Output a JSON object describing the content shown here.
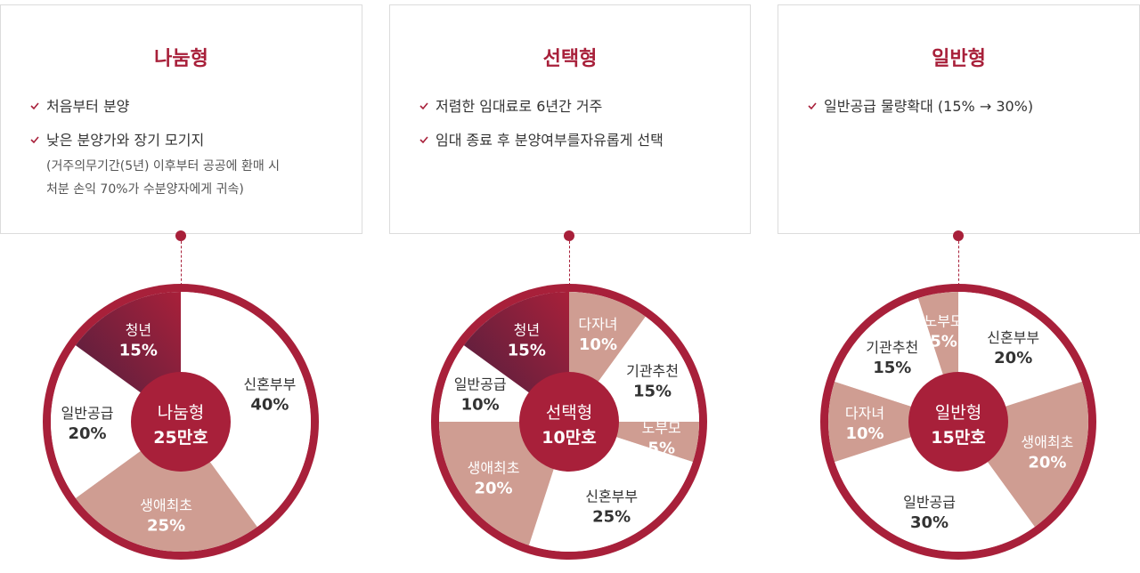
{
  "colors": {
    "accent": "#a8203a",
    "dark": "#4a1f3f",
    "pink": "#cf9d92",
    "white": "#ffffff",
    "text": "#333333",
    "border": "#dcdcdc"
  },
  "cards": [
    {
      "title": "나눔형",
      "bullets": [
        {
          "text": "처음부터 분양"
        },
        {
          "text": "낮은 분양가와 장기 모기지",
          "note_lines": [
            "(거주의무기간(5년) 이후부터 공공에 환매 시",
            "처분 손익 70%가 수분양자에게 귀속)"
          ]
        }
      ]
    },
    {
      "title": "선택형",
      "bullets": [
        {
          "text": "저렴한 임대료로 6년간 거주"
        },
        {
          "text": "임대 종료 후 분양여부를자유롭게 선택"
        }
      ]
    },
    {
      "title": "일반형",
      "bullets": [
        {
          "text": "일반공급 물량확대 (15% → 30%)"
        }
      ]
    }
  ],
  "chart_data": [
    {
      "type": "pie",
      "center_name": "나눔형",
      "center_count": "25만호",
      "slices": [
        {
          "label": "신혼부부",
          "value": 40,
          "value_label": "40%",
          "fill": "white"
        },
        {
          "label": "생애최초",
          "value": 25,
          "value_label": "25%",
          "fill": "pink"
        },
        {
          "label": "일반공급",
          "value": 20,
          "value_label": "20%",
          "fill": "white"
        },
        {
          "label": "청년",
          "value": 15,
          "value_label": "15%",
          "fill": "dark"
        }
      ]
    },
    {
      "type": "pie",
      "center_name": "선택형",
      "center_count": "10만호",
      "slices": [
        {
          "label": "다자녀",
          "value": 10,
          "value_label": "10%",
          "fill": "pink"
        },
        {
          "label": "기관추천",
          "value": 15,
          "value_label": "15%",
          "fill": "white"
        },
        {
          "label": "노부모",
          "value": 5,
          "value_label": "5%",
          "fill": "pink"
        },
        {
          "label": "신혼부부",
          "value": 25,
          "value_label": "25%",
          "fill": "white"
        },
        {
          "label": "생애최초",
          "value": 20,
          "value_label": "20%",
          "fill": "pink"
        },
        {
          "label": "일반공급",
          "value": 10,
          "value_label": "10%",
          "fill": "white"
        },
        {
          "label": "청년",
          "value": 15,
          "value_label": "15%",
          "fill": "dark"
        }
      ]
    },
    {
      "type": "pie",
      "center_name": "일반형",
      "center_count": "15만호",
      "slices": [
        {
          "label": "신혼부부",
          "value": 20,
          "value_label": "20%",
          "fill": "white"
        },
        {
          "label": "생애최초",
          "value": 20,
          "value_label": "20%",
          "fill": "pink"
        },
        {
          "label": "일반공급",
          "value": 30,
          "value_label": "30%",
          "fill": "white"
        },
        {
          "label": "다자녀",
          "value": 10,
          "value_label": "10%",
          "fill": "pink"
        },
        {
          "label": "기관추천",
          "value": 15,
          "value_label": "15%",
          "fill": "white"
        },
        {
          "label": "노부모",
          "value": 5,
          "value_label": "5%",
          "fill": "pink"
        }
      ]
    }
  ]
}
